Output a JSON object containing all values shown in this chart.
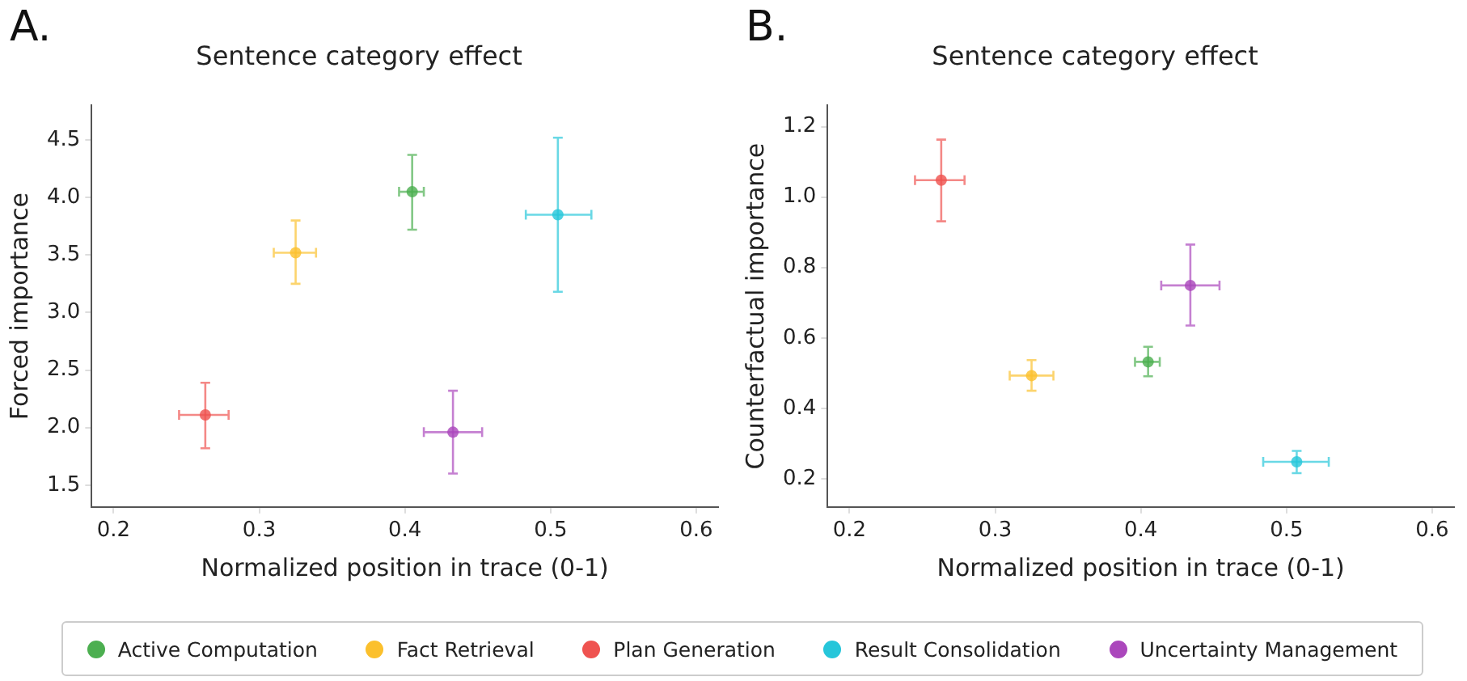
{
  "chart_data": [
    {
      "type": "scatter",
      "title": "Sentence category effect",
      "xlabel": "Normalized position in trace (0-1)",
      "ylabel": "Forced importance",
      "annotations": [
        "A."
      ],
      "xlim": [
        0.185,
        0.615
      ],
      "xticks": [
        0.2,
        0.3,
        0.4,
        0.5,
        0.6
      ],
      "ylim": [
        1.31,
        4.8
      ],
      "yticks": [
        1.5,
        {
          "value": 2,
          "label": "2.0"
        },
        2.5,
        {
          "value": 3,
          "label": "3.0"
        },
        3.5,
        {
          "value": 4,
          "label": "4.0"
        },
        4.5
      ],
      "grid": false,
      "legend": "bottom",
      "marker": "circle",
      "series": [
        {
          "name": "Active Computation",
          "color": "#4caf50",
          "x": [
            0.405
          ],
          "values": [
            4.05
          ],
          "errors": [
            [
              3.72,
              4.37
            ]
          ],
          "xerrors": [
            [
              0.396,
              0.413
            ]
          ]
        },
        {
          "name": "Fact Retrieval",
          "color": "#fbc02d",
          "x": [
            0.325
          ],
          "values": [
            3.52
          ],
          "errors": [
            [
              3.25,
              3.8
            ]
          ],
          "xerrors": [
            [
              0.31,
              0.339
            ]
          ]
        },
        {
          "name": "Plan Generation",
          "color": "#ef5350",
          "x": [
            0.263
          ],
          "values": [
            2.11
          ],
          "errors": [
            [
              1.82,
              2.39
            ]
          ],
          "xerrors": [
            [
              0.245,
              0.279
            ]
          ]
        },
        {
          "name": "Result Consolidation",
          "color": "#26c6da",
          "x": [
            0.505
          ],
          "values": [
            3.85
          ],
          "errors": [
            [
              3.18,
              4.52
            ]
          ],
          "xerrors": [
            [
              0.483,
              0.528
            ]
          ]
        },
        {
          "name": "Uncertainty Management",
          "color": "#ab47bc",
          "x": [
            0.433
          ],
          "values": [
            1.96
          ],
          "errors": [
            [
              1.6,
              2.32
            ]
          ],
          "xerrors": [
            [
              0.413,
              0.453
            ]
          ]
        }
      ]
    },
    {
      "type": "scatter",
      "title": "Sentence category effect",
      "xlabel": "Normalized position in trace (0-1)",
      "ylabel": "Counterfactual importance",
      "annotations": [
        "B."
      ],
      "xlim": [
        0.185,
        0.615
      ],
      "xticks": [
        0.2,
        0.3,
        0.4,
        0.5,
        0.6
      ],
      "ylim": [
        0.12,
        1.26
      ],
      "yticks": [
        0.2,
        0.4,
        0.6,
        0.8,
        {
          "value": 1,
          "label": "1.0"
        },
        1.2
      ],
      "grid": false,
      "marker": "circle",
      "series": [
        {
          "color": "#4caf50",
          "x": [
            0.405
          ],
          "values": [
            0.532
          ],
          "errors": [
            [
              0.491,
              0.575
            ]
          ],
          "xerrors": [
            [
              0.396,
              0.413
            ]
          ]
        },
        {
          "color": "#fbc02d",
          "x": [
            0.325
          ],
          "values": [
            0.493
          ],
          "errors": [
            [
              0.45,
              0.537
            ]
          ],
          "xerrors": [
            [
              0.31,
              0.34
            ]
          ]
        },
        {
          "color": "#ef5350",
          "x": [
            0.263
          ],
          "values": [
            1.048
          ],
          "errors": [
            [
              0.931,
              1.163
            ]
          ],
          "xerrors": [
            [
              0.245,
              0.279
            ]
          ]
        },
        {
          "color": "#26c6da",
          "x": [
            0.507
          ],
          "values": [
            0.248
          ],
          "errors": [
            [
              0.216,
              0.279
            ]
          ],
          "xerrors": [
            [
              0.484,
              0.529
            ]
          ]
        },
        {
          "color": "#ab47bc",
          "x": [
            0.434
          ],
          "values": [
            0.749
          ],
          "errors": [
            [
              0.635,
              0.865
            ]
          ],
          "xerrors": [
            [
              0.414,
              0.454
            ]
          ]
        }
      ]
    }
  ]
}
